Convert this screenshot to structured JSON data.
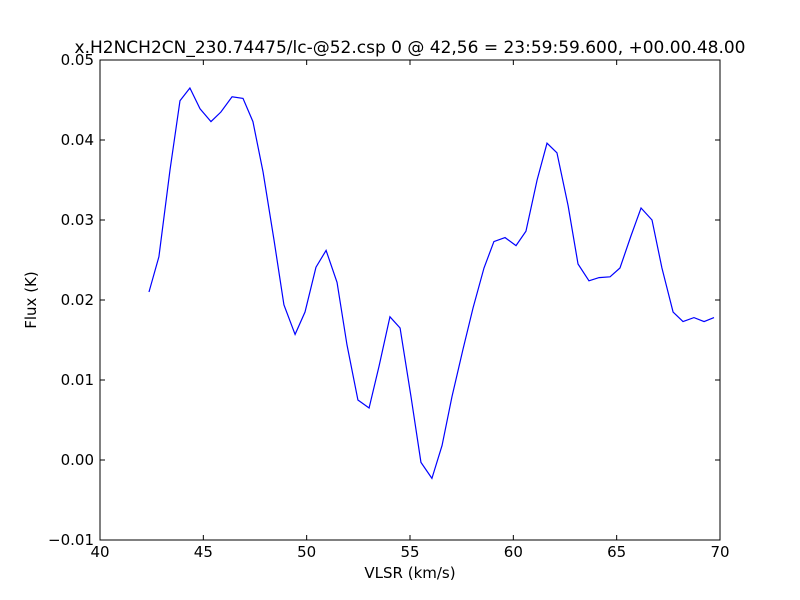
{
  "chart_data": {
    "type": "line",
    "title": "x.H2NCH2CN_230.74475/lc-@52.csp 0 @ 42,56 = 23:59:59.600, +00.00.48.00",
    "x_label": "VLSR (km/s)",
    "y_label": "Flux (K)",
    "xlim": [
      40,
      70
    ],
    "ylim": [
      -0.01,
      0.05
    ],
    "xticks": [
      40,
      45,
      50,
      55,
      60,
      65,
      70
    ],
    "yticks": [
      {
        "value": -0.01,
        "label": "−0.01"
      },
      {
        "value": 0,
        "label": "0.00"
      },
      {
        "value": 0.01,
        "label": "0.01"
      },
      {
        "value": 0.02,
        "label": "0.02"
      },
      {
        "value": 0.03,
        "label": "0.03"
      },
      {
        "value": 0.04,
        "label": "0.04"
      },
      {
        "value": 0.05,
        "label": "0.05"
      }
    ],
    "x": [
      42.37,
      42.85,
      43.39,
      43.87,
      44.35,
      44.84,
      45.37,
      45.85,
      46.39,
      46.92,
      47.4,
      47.89,
      48.42,
      48.9,
      49.44,
      49.92,
      50.45,
      50.94,
      51.47,
      51.95,
      52.48,
      53.02,
      53.5,
      54.03,
      54.52,
      55.05,
      55.53,
      56.06,
      56.55,
      57.03,
      57.56,
      58.05,
      58.58,
      59.06,
      59.6,
      60.13,
      60.61,
      61.15,
      61.63,
      62.11,
      62.65,
      63.13,
      63.66,
      64.15,
      64.68,
      65.16,
      65.69,
      66.18,
      66.71,
      67.19,
      67.73,
      68.21,
      68.74,
      69.23,
      69.71
    ],
    "series": [
      {
        "color": "#0000ff",
        "values": [
          0.021,
          0.0254,
          0.0363,
          0.0449,
          0.0465,
          0.0439,
          0.0423,
          0.0435,
          0.0454,
          0.0452,
          0.0423,
          0.036,
          0.0275,
          0.0194,
          0.0157,
          0.0185,
          0.0241,
          0.0262,
          0.0222,
          0.0144,
          0.0075,
          0.0065,
          0.0117,
          0.0179,
          0.0165,
          0.0079,
          -0.0003,
          -0.0023,
          0.0018,
          0.0079,
          0.0138,
          0.019,
          0.024,
          0.0273,
          0.0278,
          0.0268,
          0.0286,
          0.035,
          0.0396,
          0.0384,
          0.0318,
          0.0245,
          0.0224,
          0.0228,
          0.0229,
          0.024,
          0.028,
          0.0315,
          0.03,
          0.024,
          0.0185,
          0.0173,
          0.0178,
          0.0173,
          0.0178
        ]
      }
    ]
  }
}
